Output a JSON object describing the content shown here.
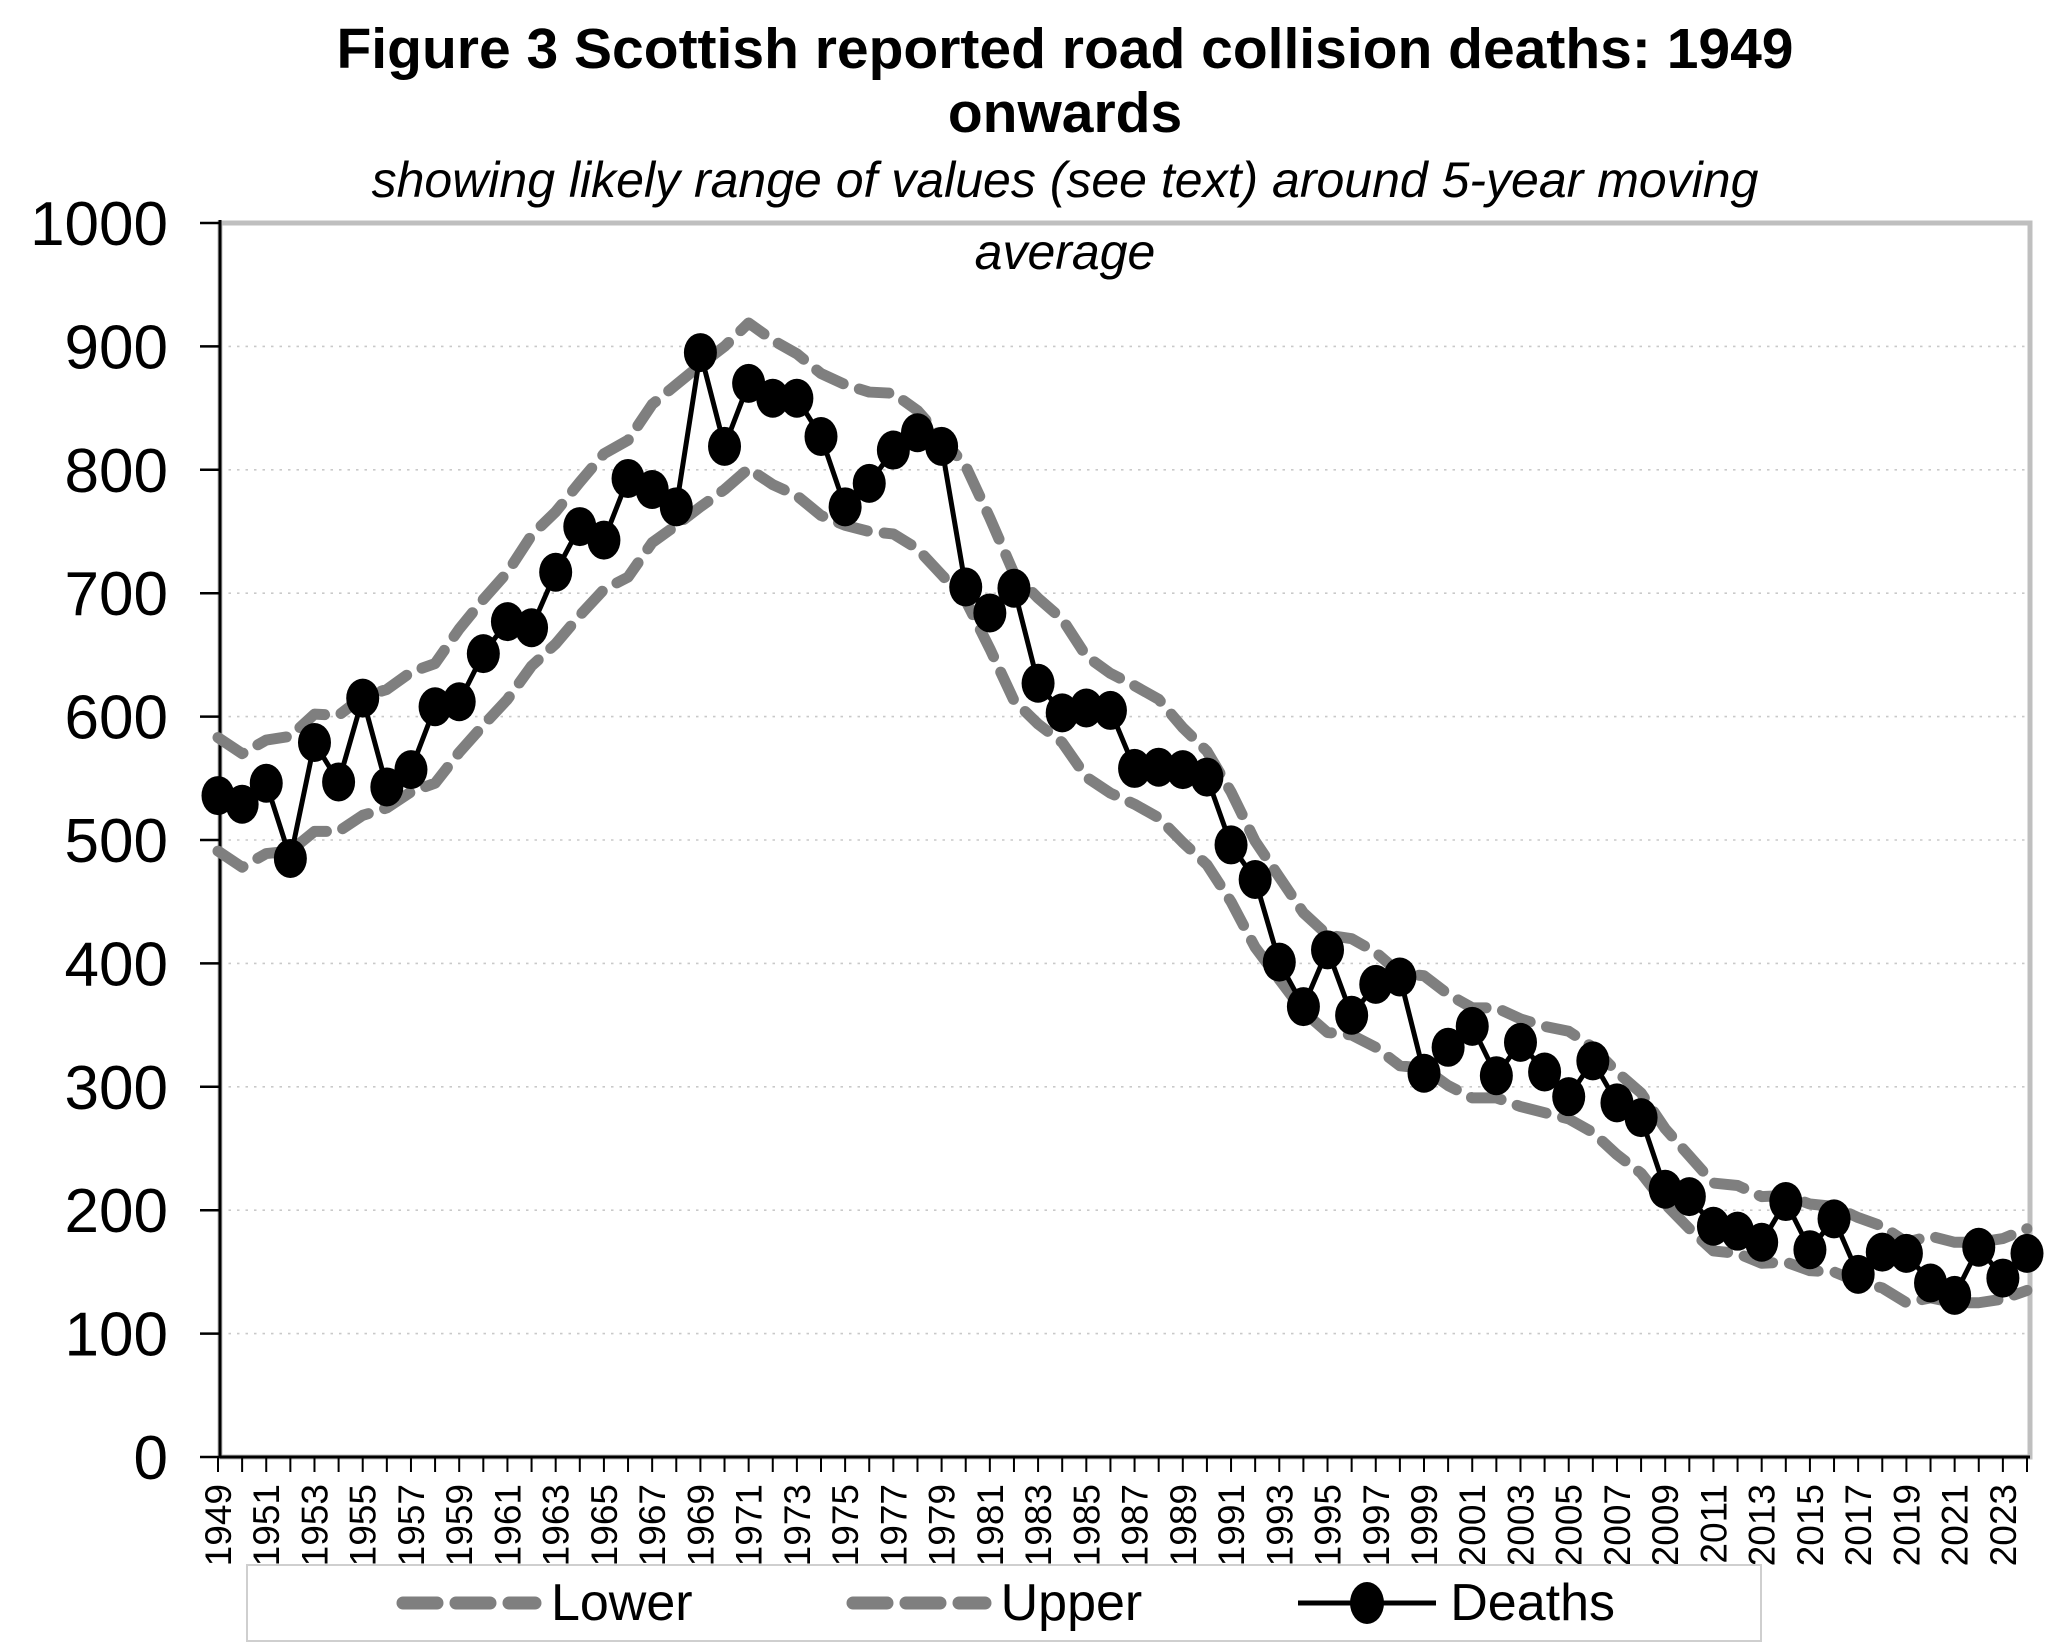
{
  "title": {
    "line1": "Figure 3 Scottish reported road collision deaths: 1949",
    "line2": "onwards",
    "subtitle1": "showing likely range of values (see text) around 5-year moving",
    "subtitle2": "average"
  },
  "legend": {
    "lower_label": "Lower",
    "upper_label": "Upper",
    "deaths_label": "Deaths"
  },
  "colors": {
    "deaths": "#000000",
    "band": "#7f7f7f",
    "grid": "#c9c9c9",
    "frame": "#bfbfbf",
    "axis": "#000000",
    "text": "#000000",
    "background": "#ffffff"
  },
  "chart_data": {
    "type": "line",
    "title": "Figure 3 Scottish reported road collision deaths: 1949 onwards",
    "subtitle": "showing likely range of values (see text) around 5-year moving average",
    "xlabel": "",
    "ylabel": "",
    "ylim": [
      0,
      1000
    ],
    "ytick_step": 100,
    "ytick_labels": [
      "0",
      "100",
      "200",
      "300",
      "400",
      "500",
      "600",
      "700",
      "800",
      "900",
      "1000"
    ],
    "xtick_labels": [
      "1949",
      "1951",
      "1953",
      "1955",
      "1957",
      "1959",
      "1961",
      "1963",
      "1965",
      "1967",
      "1969",
      "1971",
      "1973",
      "1975",
      "1977",
      "1979",
      "1981",
      "1983",
      "1985",
      "1987",
      "1989",
      "1991",
      "1993",
      "1995",
      "1997",
      "1999",
      "2001",
      "2003",
      "2005",
      "2007",
      "2009",
      "2011",
      "2013",
      "2015",
      "2017",
      "2019",
      "2021",
      "2023"
    ],
    "grid": "horizontal-dotted",
    "legend_position": "bottom",
    "years": [
      1949,
      1950,
      1951,
      1952,
      1953,
      1954,
      1955,
      1956,
      1957,
      1958,
      1959,
      1960,
      1961,
      1962,
      1963,
      1964,
      1965,
      1966,
      1967,
      1968,
      1969,
      1970,
      1971,
      1972,
      1973,
      1974,
      1975,
      1976,
      1977,
      1978,
      1979,
      1980,
      1981,
      1982,
      1983,
      1984,
      1985,
      1986,
      1987,
      1988,
      1989,
      1990,
      1991,
      1992,
      1993,
      1994,
      1995,
      1996,
      1997,
      1998,
      1999,
      2000,
      2001,
      2002,
      2003,
      2004,
      2005,
      2006,
      2007,
      2008,
      2009,
      2010,
      2011,
      2012,
      2013,
      2014,
      2015,
      2016,
      2017,
      2018,
      2019,
      2020,
      2021,
      2022,
      2023,
      2024
    ],
    "series": [
      {
        "name": "Lower",
        "style": "dashed",
        "values": [
          491,
          478,
          489,
          491,
          507,
          507,
          520,
          526,
          539,
          546,
          571,
          593,
          614,
          641,
          659,
          682,
          703,
          713,
          741,
          755,
          770,
          784,
          801,
          788,
          779,
          763,
          755,
          750,
          748,
          736,
          715,
          694,
          655,
          613,
          594,
          579,
          551,
          538,
          529,
          518,
          498,
          480,
          450,
          413,
          387,
          361,
          344,
          342,
          332,
          317,
          315,
          301,
          291,
          291,
          284,
          279,
          274,
          263,
          245,
          230,
          205,
          185,
          167,
          165,
          157,
          158,
          151,
          150,
          142,
          137,
          125,
          129,
          125,
          125,
          128,
          135
        ]
      },
      {
        "name": "Upper",
        "style": "dashed",
        "values": [
          583,
          570,
          581,
          584,
          602,
          601,
          616,
          622,
          636,
          643,
          671,
          695,
          717,
          747,
          766,
          790,
          813,
          824,
          853,
          869,
          885,
          900,
          919,
          905,
          894,
          878,
          869,
          863,
          862,
          848,
          826,
          803,
          761,
          716,
          696,
          679,
          649,
          635,
          625,
          614,
          591,
          572,
          539,
          499,
          470,
          441,
          423,
          420,
          409,
          392,
          390,
          375,
          364,
          364,
          355,
          349,
          345,
          332,
          312,
          295,
          266,
          244,
          222,
          220,
          211,
          212,
          205,
          203,
          194,
          187,
          174,
          179,
          174,
          174,
          177,
          185
        ]
      },
      {
        "name": "Deaths",
        "style": "line-markers",
        "values": [
          536,
          529,
          546,
          485,
          579,
          547,
          615,
          543,
          557,
          608,
          612,
          651,
          677,
          672,
          717,
          754,
          743,
          793,
          784,
          770,
          895,
          819,
          870,
          858,
          858,
          827,
          770,
          789,
          816,
          830,
          819,
          705,
          684,
          704,
          627,
          603,
          607,
          605,
          558,
          559,
          557,
          551,
          496,
          468,
          401,
          365,
          411,
          358,
          383,
          389,
          311,
          332,
          349,
          309,
          336,
          312,
          292,
          321,
          287,
          275,
          217,
          211,
          187,
          183,
          174,
          207,
          168,
          193,
          148,
          166,
          165,
          141,
          131,
          170,
          145,
          165
        ]
      }
    ]
  }
}
